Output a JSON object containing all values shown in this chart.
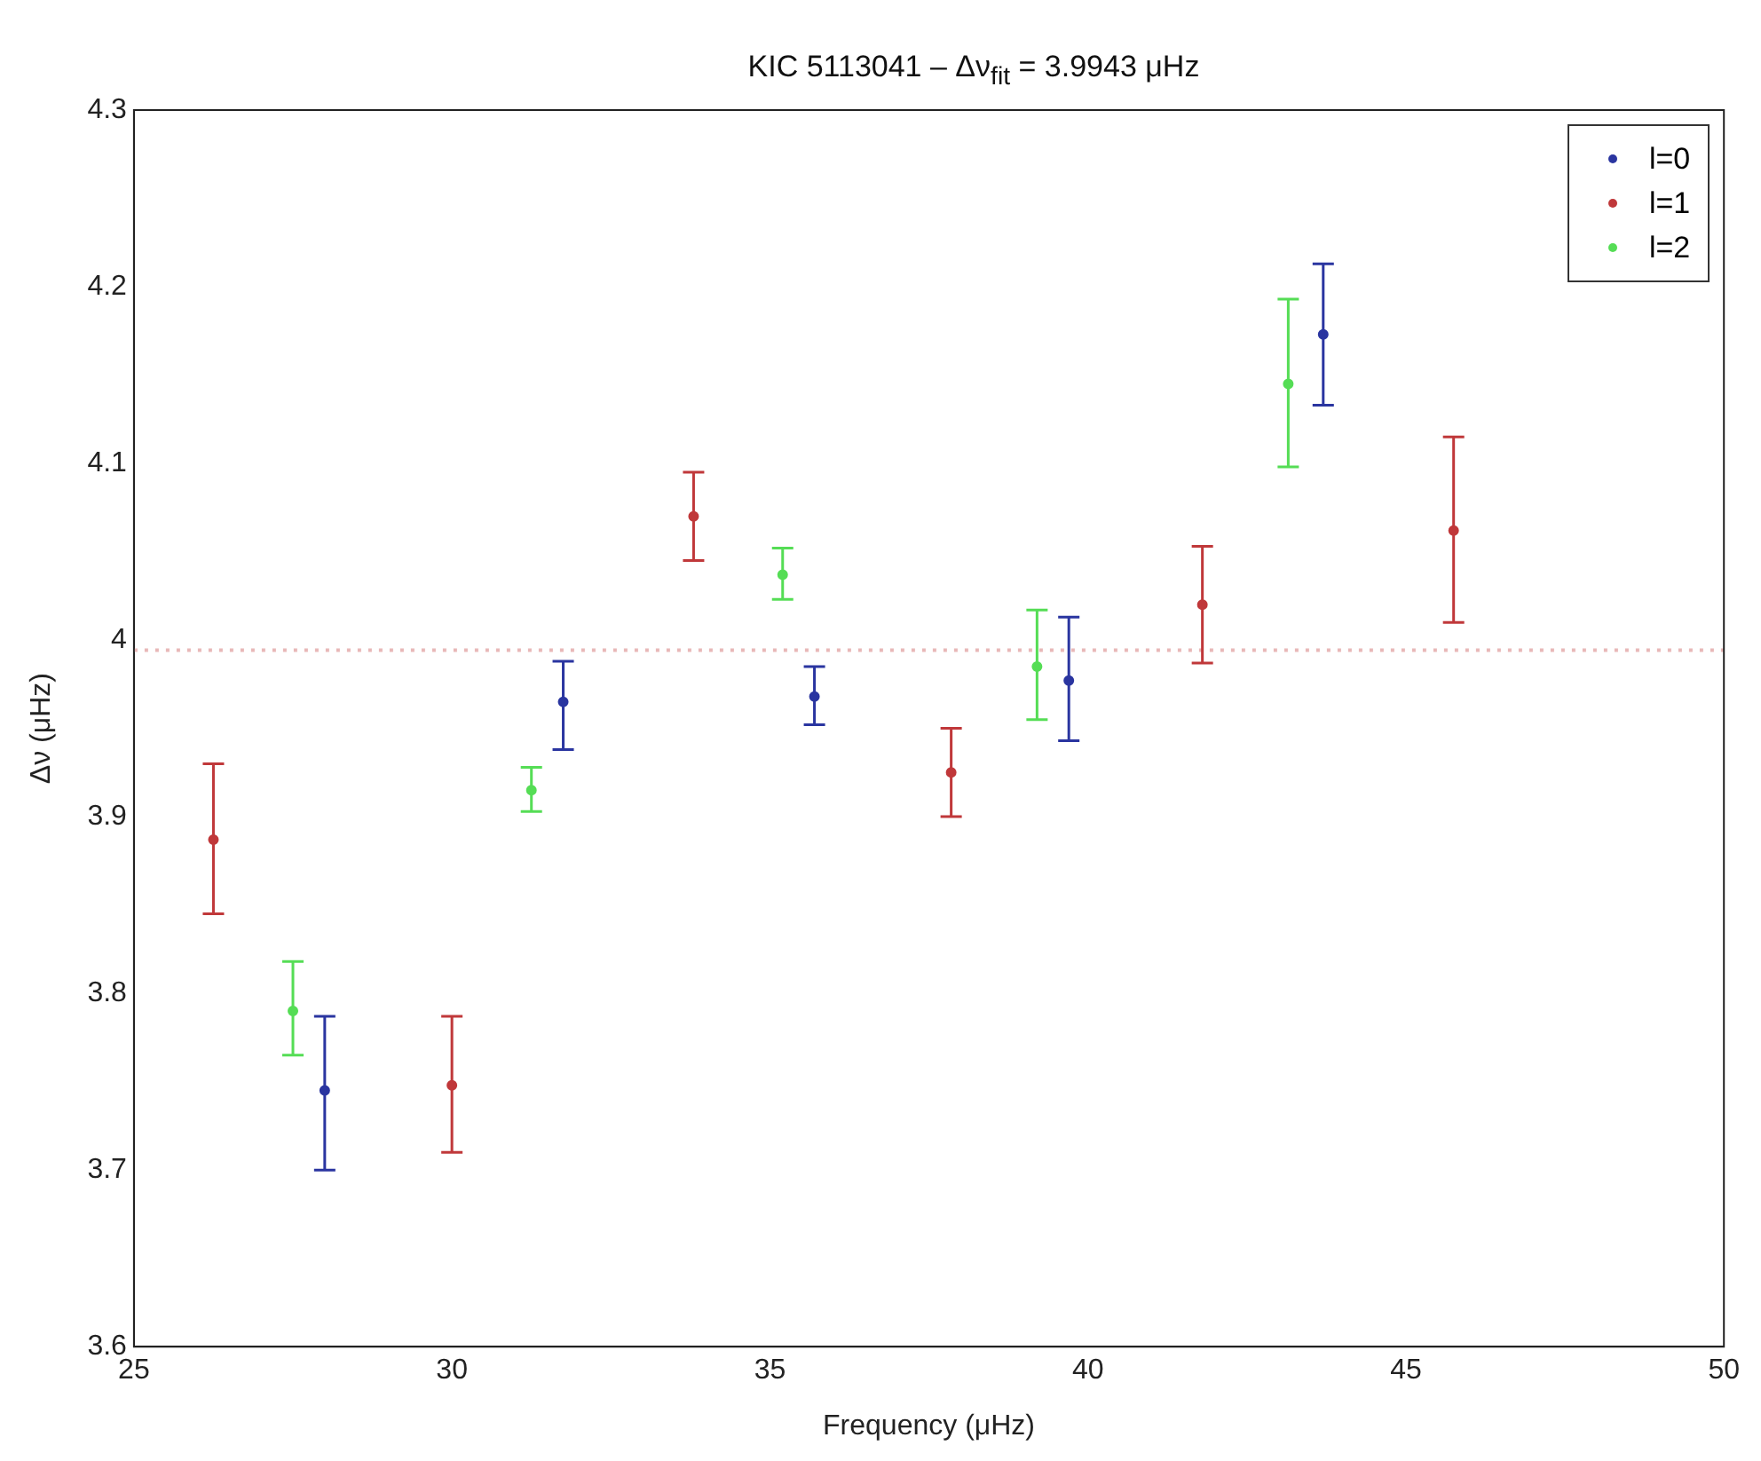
{
  "chart_data": {
    "type": "scatter",
    "title": "KIC 5113041 – Δν$_{fit}$ = 3.9943 μHz",
    "xlabel": "Frequency (μHz)",
    "ylabel": "Δν (μHz)",
    "xlim": [
      25,
      50
    ],
    "xticks": [
      25,
      30,
      35,
      40,
      45,
      50
    ],
    "ylim": [
      3.6,
      4.3
    ],
    "yticks": [
      3.6,
      3.7,
      3.8,
      3.9,
      4,
      4.1,
      4.2,
      4.3
    ],
    "grid": false,
    "legend": "top right",
    "marker": "circle",
    "ref_lines": [
      {
        "axis": "y",
        "value": 3.9943,
        "color": "#e8b8b8",
        "line_style": "dotted"
      }
    ],
    "series": [
      {
        "name": "l=0",
        "color": "#2a35a0",
        "x": [
          28.0,
          31.75,
          35.7,
          39.7,
          43.7
        ],
        "values": [
          3.745,
          3.965,
          3.968,
          3.977,
          4.173
        ],
        "errors": [
          [
            3.7,
            3.787
          ],
          [
            3.938,
            3.988
          ],
          [
            3.952,
            3.985
          ],
          [
            3.943,
            4.013
          ],
          [
            4.133,
            4.213
          ]
        ]
      },
      {
        "name": "l=1",
        "color": "#c0383a",
        "x": [
          26.25,
          30.0,
          33.8,
          37.85,
          41.8,
          45.75
        ],
        "values": [
          3.887,
          3.748,
          4.07,
          3.925,
          4.02,
          4.062
        ],
        "errors": [
          [
            3.845,
            3.93
          ],
          [
            3.71,
            3.787
          ],
          [
            4.045,
            4.095
          ],
          [
            3.9,
            3.95
          ],
          [
            3.987,
            4.053
          ],
          [
            4.01,
            4.115
          ]
        ]
      },
      {
        "name": "l=2",
        "color": "#55dd55",
        "x": [
          27.5,
          31.25,
          35.2,
          39.2,
          43.15
        ],
        "values": [
          3.79,
          3.915,
          4.037,
          3.985,
          4.145
        ],
        "errors": [
          [
            3.765,
            3.818
          ],
          [
            3.903,
            3.928
          ],
          [
            4.023,
            4.052
          ],
          [
            3.955,
            4.017
          ],
          [
            4.098,
            4.193
          ]
        ]
      }
    ]
  }
}
